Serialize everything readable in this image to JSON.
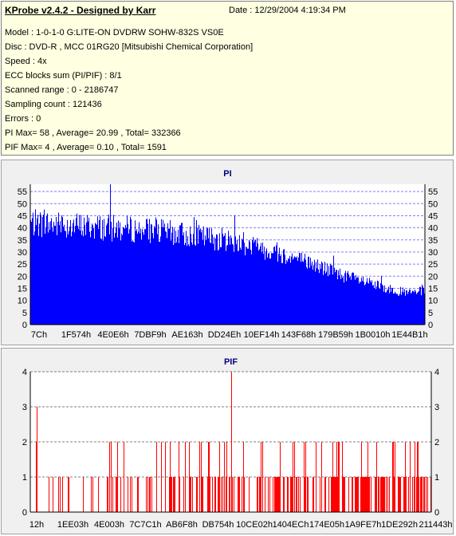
{
  "header": {
    "title": "KProbe v2.4.2 - Designed by Karr",
    "date": "Date :  12/29/2004 4:19:34 PM"
  },
  "info_lines": [
    "Model : 1-0-1-0 G:LITE-ON DVDRW SOHW-832S  VS0E",
    "Disc : DVD-R , MCC 01RG20   [Mitsubishi Chemical Corporation]",
    "Speed : 4x",
    "ECC blocks sum (PI/PIF) : 8/1",
    "Scanned range : 0 - 2186747",
    "Sampling count : 121436",
    "Errors : 0",
    "PI Max= 58 , Average= 20.99 , Total= 332366",
    "PIF Max= 4 , Average= 0.10 , Total= 1591"
  ],
  "chart_data": [
    {
      "type": "bar",
      "title": "PI",
      "color": "#0000ff",
      "ylim": [
        0,
        58
      ],
      "yticks": [
        0,
        5,
        10,
        15,
        20,
        25,
        30,
        35,
        40,
        45,
        50,
        55
      ],
      "xlabels": [
        "7Ch",
        "1F574h",
        "4E0E6h",
        "7DBF9h",
        "AE163h",
        "DD24Eh",
        "10EF14h",
        "143F68h",
        "179B59h",
        "1B0010h",
        "1E44B1h"
      ],
      "profile": [
        [
          0,
          42
        ],
        [
          0.1,
          41
        ],
        [
          0.2,
          40
        ],
        [
          0.3,
          39
        ],
        [
          0.4,
          37
        ],
        [
          0.5,
          35
        ],
        [
          0.6,
          31
        ],
        [
          0.7,
          26
        ],
        [
          0.8,
          20
        ],
        [
          0.9,
          15
        ],
        [
          0.96,
          13
        ],
        [
          1.0,
          14
        ]
      ],
      "max": 58,
      "average": 20.99,
      "grid": true,
      "grid_color": "#7f7fff"
    },
    {
      "type": "bar",
      "title": "PIF",
      "color": "#ff0000",
      "ylim": [
        0,
        4
      ],
      "yticks": [
        0,
        1,
        2,
        3,
        4
      ],
      "xlabels": [
        "12h",
        "1EE03h",
        "4E003h",
        "7C7C1h",
        "AB6F8h",
        "DB754h",
        "10CE02h",
        "1404ECh",
        "174E05h",
        "1A9FE7h",
        "1DE292h",
        "211443h"
      ],
      "max": 4,
      "average": 0.1,
      "grid": true,
      "grid_color": "#7f7f7f"
    }
  ]
}
